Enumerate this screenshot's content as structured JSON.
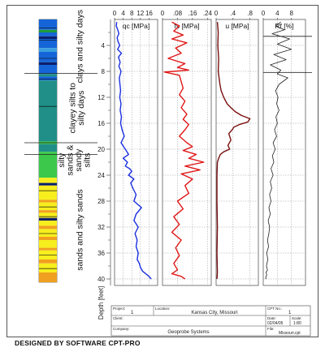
{
  "footer": "DESIGNED BY SOFTWARE CPT-PRO",
  "zone_labels": [
    "clays and silty days",
    "clayey silts to silty days",
    "silty sands & sandy silts",
    "sands and silty sands"
  ],
  "depth_axis": {
    "label": "Depth [feet]",
    "ticks": [
      4,
      8,
      12,
      16,
      20,
      24,
      28,
      32,
      36,
      40
    ],
    "range": [
      0,
      41
    ]
  },
  "title_block": {
    "labels": {
      "project": "Project",
      "location": "Location",
      "client": "Client",
      "company": "Company",
      "cpt": "CPT No.",
      "date": "Date",
      "scale": "Scale",
      "file": "File"
    },
    "values": {
      "project": "1",
      "location": "Kansas City, Missouri",
      "company": "Geoprobe Systems",
      "cpt": "1",
      "date": "02/04/05",
      "scale": "1:80",
      "file": "Missouri.cpt"
    }
  },
  "soil_colors": {
    "clay": "#1565d8",
    "silt": "#1f8f87",
    "sand_silt": "#3cc84a",
    "sand": "#f7ee1e",
    "sand_orange": "#f0a020",
    "dark": "#0c1f6b",
    "green": "#1f9a3c",
    "blue_light": "#3aa0e0"
  },
  "soil_layers": [
    {
      "from": 0.0,
      "to": 1.6,
      "type": "clay"
    },
    {
      "from": 1.6,
      "to": 2.0,
      "type": "green"
    },
    {
      "from": 2.0,
      "to": 2.6,
      "type": "clay"
    },
    {
      "from": 2.6,
      "to": 3.0,
      "type": "dark"
    },
    {
      "from": 3.0,
      "to": 4.4,
      "type": "clay"
    },
    {
      "from": 4.4,
      "to": 5.0,
      "type": "blue_light"
    },
    {
      "from": 5.0,
      "to": 6.6,
      "type": "clay"
    },
    {
      "from": 6.6,
      "to": 7.0,
      "type": "dark"
    },
    {
      "from": 7.0,
      "to": 8.4,
      "type": "clay"
    },
    {
      "from": 8.4,
      "to": 8.8,
      "type": "silt"
    },
    {
      "from": 8.8,
      "to": 9.4,
      "type": "clay"
    },
    {
      "from": 9.4,
      "to": 18.8,
      "type": "silt"
    },
    {
      "from": 18.8,
      "to": 19.2,
      "type": "sand_silt"
    },
    {
      "from": 19.2,
      "to": 20.4,
      "type": "silt"
    },
    {
      "from": 20.4,
      "to": 24.4,
      "type": "sand_silt"
    },
    {
      "from": 24.4,
      "to": 25.2,
      "type": "sand"
    },
    {
      "from": 25.2,
      "to": 25.6,
      "type": "dark"
    },
    {
      "from": 25.6,
      "to": 27.8,
      "type": "sand"
    },
    {
      "from": 27.8,
      "to": 28.2,
      "type": "sand_orange"
    },
    {
      "from": 28.2,
      "to": 29.4,
      "type": "sand"
    },
    {
      "from": 29.4,
      "to": 29.8,
      "type": "sand_orange"
    },
    {
      "from": 29.8,
      "to": 30.6,
      "type": "sand"
    },
    {
      "from": 30.6,
      "to": 31.0,
      "type": "dark"
    },
    {
      "from": 31.0,
      "to": 31.8,
      "type": "sand"
    },
    {
      "from": 31.8,
      "to": 32.3,
      "type": "sand_orange"
    },
    {
      "from": 32.3,
      "to": 33.5,
      "type": "sand"
    },
    {
      "from": 33.5,
      "to": 34.0,
      "type": "sand_orange"
    },
    {
      "from": 34.0,
      "to": 35.2,
      "type": "sand"
    },
    {
      "from": 35.2,
      "to": 35.6,
      "type": "sand_orange"
    },
    {
      "from": 35.6,
      "to": 37.0,
      "type": "sand"
    },
    {
      "from": 37.0,
      "to": 37.6,
      "type": "sand_orange"
    },
    {
      "from": 37.6,
      "to": 39.0,
      "type": "sand"
    },
    {
      "from": 39.0,
      "to": 40.5,
      "type": "sand_orange"
    }
  ],
  "zone_boundaries": [
    8.3,
    19.0,
    20.8
  ],
  "chart_data": [
    {
      "type": "line",
      "title": "qc [MPa]",
      "color": "#1a2fe0",
      "xlim": [
        0,
        20
      ],
      "ticks": [
        0,
        4,
        8,
        12,
        16
      ],
      "x": [
        1.0,
        0.8,
        1.5,
        2.0,
        1.2,
        1.6,
        2.4,
        1.4,
        3.2,
        1.8,
        2.6,
        2.0,
        3.0,
        2.2,
        2.5,
        2.8,
        2.4,
        3.0,
        2.6,
        3.2,
        2.8,
        3.5,
        4.5,
        3.0,
        5.0,
        6.5,
        4.0,
        6.0,
        5.0,
        7.0,
        8.0,
        6.5,
        9.0,
        7.5,
        8.5,
        10.0,
        9.0,
        12.5,
        10.0,
        9.0,
        11.0,
        9.5,
        10.5,
        10.0,
        11.0,
        10.5,
        11.5,
        12.0,
        13.0,
        14.5,
        16.0,
        17.0
      ],
      "y": [
        0.4,
        1.0,
        1.6,
        2.2,
        2.8,
        3.4,
        4.0,
        4.6,
        5.2,
        5.8,
        6.6,
        7.2,
        8.0,
        9.0,
        10.0,
        11.0,
        12.0,
        13.0,
        14.0,
        15.0,
        16.0,
        17.0,
        18.0,
        19.0,
        20.0,
        20.8,
        21.4,
        22.0,
        22.6,
        23.0,
        23.4,
        24.0,
        24.6,
        25.2,
        26.0,
        27.0,
        28.0,
        29.0,
        30.0,
        31.0,
        32.0,
        33.0,
        34.0,
        35.0,
        36.0,
        37.0,
        37.6,
        38.2,
        38.8,
        39.2,
        39.6,
        40.0
      ]
    },
    {
      "type": "line",
      "title": "fs [MPa]",
      "color": "#e01818",
      "xlim": [
        0,
        0.26
      ],
      "ticks": [
        0,
        0.08,
        0.16,
        0.24
      ],
      "tick_labels": [
        "0",
        ".08",
        ".16",
        ".24"
      ],
      "x": [
        0.05,
        0.09,
        0.06,
        0.11,
        0.05,
        0.13,
        0.07,
        0.1,
        0.03,
        0.12,
        0.08,
        0.14,
        0.06,
        0.01,
        0.09,
        0.1,
        0.11,
        0.09,
        0.12,
        0.1,
        0.13,
        0.11,
        0.14,
        0.12,
        0.09,
        0.13,
        0.16,
        0.11,
        0.18,
        0.14,
        0.22,
        0.12,
        0.2,
        0.1,
        0.16,
        0.12,
        0.14,
        0.08,
        0.11,
        0.06,
        0.09,
        0.05,
        0.1,
        0.07,
        0.09,
        0.06,
        0.08,
        0.05,
        0.1,
        0.12
      ],
      "y": [
        0.4,
        1.0,
        1.8,
        2.4,
        3.0,
        3.6,
        4.4,
        5.2,
        6.0,
        6.8,
        7.4,
        7.8,
        8.0,
        8.1,
        8.6,
        9.6,
        10.6,
        11.6,
        12.6,
        13.6,
        14.6,
        15.4,
        16.2,
        17.0,
        18.0,
        19.0,
        19.6,
        20.2,
        20.8,
        21.4,
        22.0,
        22.6,
        23.2,
        23.8,
        24.6,
        25.6,
        26.8,
        28.0,
        29.2,
        30.4,
        31.6,
        32.8,
        34.0,
        35.2,
        36.4,
        37.6,
        38.6,
        39.2,
        39.6,
        40.0
      ]
    },
    {
      "type": "line",
      "title": "u [MPa]",
      "color": "#7a1010",
      "xlim": [
        0,
        1.0
      ],
      "ticks": [
        0,
        0.4,
        0.8
      ],
      "tick_labels": [
        "0",
        ".4",
        ".8"
      ],
      "x": [
        0.03,
        0.05,
        0.04,
        0.06,
        0.05,
        0.07,
        0.09,
        0.12,
        0.18,
        0.26,
        0.35,
        0.45,
        0.6,
        0.8,
        0.75,
        0.55,
        0.42,
        0.38,
        0.3,
        0.35,
        0.28,
        0.32,
        0.18,
        0.1,
        0.06,
        0.03,
        0.02,
        0.02,
        0.03,
        0.02,
        0.03,
        0.02
      ],
      "y": [
        0.4,
        2.0,
        4.0,
        6.0,
        8.0,
        9.0,
        10.0,
        11.0,
        12.0,
        13.0,
        13.6,
        14.2,
        14.8,
        15.3,
        15.8,
        16.2,
        16.6,
        17.0,
        17.6,
        18.6,
        19.4,
        20.0,
        20.4,
        20.8,
        21.4,
        22.0,
        24.0,
        28.0,
        32.0,
        36.0,
        39.0,
        40.0
      ]
    },
    {
      "type": "line",
      "title": "Rf [%]",
      "color": "#222222",
      "xlim": [
        0,
        12
      ],
      "ticks": [
        0,
        4,
        8
      ],
      "x": [
        5.0,
        3.5,
        6.0,
        2.5,
        7.5,
        4.0,
        8.0,
        3.0,
        6.5,
        2.0,
        5.0,
        4.0,
        7.0,
        4.5,
        3.5,
        4.2,
        3.8,
        4.5,
        3.6,
        4.0,
        3.2,
        3.8,
        2.8,
        3.4,
        2.6,
        3.0,
        2.2,
        2.8,
        2.0,
        2.4,
        1.8,
        2.2,
        1.6,
        2.0,
        1.4,
        1.8,
        1.6,
        1.2,
        1.5,
        1.0,
        1.3,
        0.9,
        1.2,
        0.8,
        1.0,
        0.7,
        0.8,
        0.6
      ],
      "y": [
        0.4,
        1.0,
        1.6,
        2.2,
        3.0,
        3.8,
        4.6,
        5.4,
        6.2,
        7.0,
        7.8,
        8.4,
        9.0,
        10.0,
        11.0,
        12.0,
        13.0,
        14.0,
        15.0,
        16.0,
        17.0,
        18.0,
        19.0,
        20.0,
        21.0,
        22.0,
        23.0,
        24.0,
        25.0,
        26.0,
        27.0,
        28.0,
        29.0,
        30.0,
        31.0,
        32.0,
        33.0,
        34.0,
        35.0,
        36.0,
        37.0,
        38.0,
        38.6,
        39.0,
        39.4,
        39.7,
        39.9,
        40.0
      ]
    }
  ]
}
